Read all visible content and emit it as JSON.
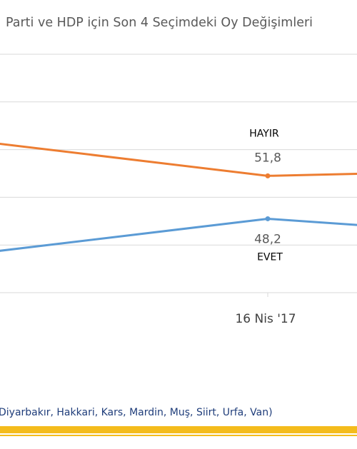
{
  "chart_data": {
    "type": "line",
    "title": "Parti ve HDP için Son 4 Seçimdeki Oy Değişimleri",
    "xlabel": "",
    "ylabel": "",
    "categories": [
      "",
      "16 Nis '17",
      ""
    ],
    "x_tick_labels": [
      "16 Nis '17"
    ],
    "grid": true,
    "ylim": [
      42,
      62
    ],
    "series": [
      {
        "name": "HAYIR",
        "color": "#ed7d31",
        "values": [
          54.5,
          51.8,
          52.0
        ],
        "labels": [
          "",
          "51,8",
          ""
        ]
      },
      {
        "name": "EVET",
        "color": "#5b9bd5",
        "values": [
          45.5,
          48.2,
          47.6
        ],
        "labels": [
          "",
          "48,2",
          ""
        ]
      }
    ]
  },
  "footnote": "Diyarbakır, Hakkari, Kars, Mardin, Muş, Siirt, Urfa, Van)",
  "colors": {
    "footnote_text": "#1f3d7a",
    "footer_band": "#f4bc1c",
    "grid": "#d9d9d9",
    "text": "#404040"
  }
}
